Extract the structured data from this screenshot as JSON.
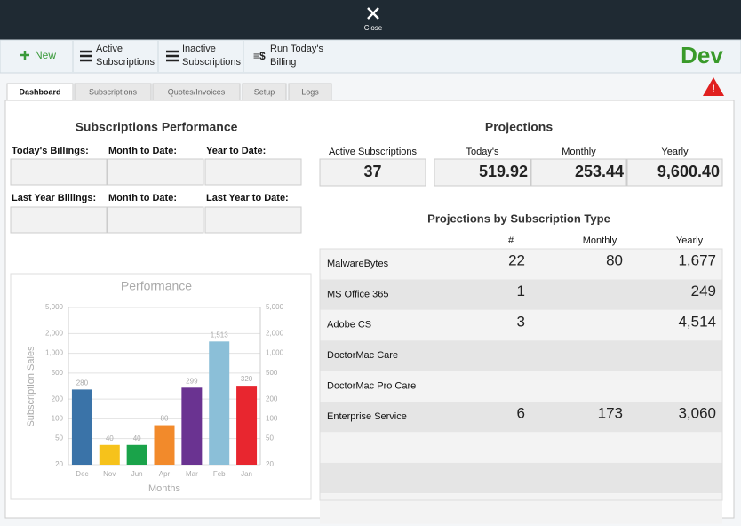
{
  "header": {
    "close_label": "Close"
  },
  "toolbar": {
    "new_label": "New",
    "buttons": [
      {
        "lines": [
          "Active",
          "Subscriptions"
        ]
      },
      {
        "lines": [
          "Inactive",
          "Subscriptions"
        ]
      },
      {
        "lines": [
          "Run Today's",
          "Billing"
        ]
      }
    ],
    "brand": "Dev"
  },
  "tabs": [
    "Dashboard",
    "Subscriptions",
    "Quotes/Invoices",
    "Setup",
    "Logs"
  ],
  "performance": {
    "title": "Subscriptions Performance",
    "row1_labels": [
      "Today's Billings:",
      "Month to Date:",
      "Year to Date:"
    ],
    "row2_labels": [
      "Last Year Billings:",
      "Month to Date:",
      "Last Year to Date:"
    ]
  },
  "projections": {
    "title": "Projections",
    "labels": [
      "Active Subscriptions",
      "Today's",
      "Monthly",
      "Yearly"
    ],
    "values": [
      "37",
      "519.92",
      "253.44",
      "9,600.40"
    ]
  },
  "type_table": {
    "title": "Projections by Subscription Type",
    "columns": [
      "#",
      "Monthly",
      "Yearly"
    ],
    "rows": [
      [
        "MalwareBytes",
        "22",
        "80",
        "1,677"
      ],
      [
        "MS Office 365",
        "1",
        null,
        "249"
      ],
      [
        "Adobe CS",
        "3",
        null,
        "4,514"
      ],
      [
        "DoctorMac Care",
        null,
        null,
        null
      ],
      [
        "DoctorMac Pro Care",
        null,
        null,
        null
      ],
      [
        "Enterprise Service",
        "6",
        "173",
        "3,060"
      ]
    ]
  },
  "chart_data": {
    "type": "bar",
    "title": "Performance",
    "x_label": "Months",
    "y_label": "Subscription Sales",
    "categories": [
      "Dec",
      "Nov",
      "Jun",
      "Apr",
      "Mar",
      "Feb",
      "Jan"
    ],
    "values": [
      280,
      40,
      40,
      80,
      299,
      1513,
      320
    ],
    "value_labels": [
      "280",
      "40",
      "40",
      "80",
      "299",
      "1,513",
      "320"
    ],
    "colors": [
      "#3a73a8",
      "#f6c21b",
      "#1aa34a",
      "#f28a2b",
      "#6a3391",
      "#8bbfd8",
      "#e8262f"
    ],
    "log_scale": true,
    "grid": true,
    "ylim": [
      20,
      5000
    ],
    "yticks": [
      20,
      50,
      100,
      200,
      500,
      {
        "value": 1000,
        "label": "1,000"
      },
      {
        "value": 2000,
        "label": "2,000"
      },
      {
        "value": 5000,
        "label": "5,000"
      }
    ]
  }
}
